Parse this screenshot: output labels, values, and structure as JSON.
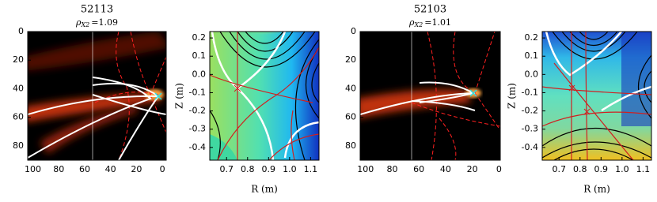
{
  "chart_data": [
    {
      "type": "image",
      "title": "52113",
      "subtitle": {
        "symbol": "ρ",
        "subscript": "X2",
        "text": "=1.09"
      },
      "xlim": [
        104,
        -3
      ],
      "xticks": [
        100,
        80,
        60,
        40,
        20,
        0
      ],
      "ylim": [
        90,
        0
      ],
      "yticks": [
        0,
        20,
        40,
        60,
        80
      ]
    },
    {
      "type": "contour",
      "xlabel": "R (m)",
      "ylabel": "Z (m)",
      "xlim": [
        0.62,
        1.14
      ],
      "xticks": [
        0.7,
        0.8,
        0.9,
        {
          "value": 1,
          "label": "1.0"
        },
        1.1
      ],
      "ylim": [
        -0.47,
        0.235
      ],
      "yticks": [
        0.2,
        0.1,
        {
          "value": 0,
          "label": "0.0"
        },
        -0.1,
        -0.2,
        -0.3,
        -0.4
      ]
    },
    {
      "type": "image",
      "title": "52103",
      "subtitle": {
        "symbol": "ρ",
        "subscript": "X2",
        "text": "=1.01"
      },
      "xlim": [
        104,
        -1
      ],
      "xticks": [
        100,
        80,
        60,
        40,
        20,
        0
      ],
      "ylim": [
        90,
        0
      ],
      "yticks": [
        0,
        20,
        40,
        60,
        80
      ]
    },
    {
      "type": "contour",
      "xlabel": "R (m)",
      "ylabel": "Z (m)",
      "xlim": [
        0.62,
        1.14
      ],
      "xticks": [
        0.7,
        0.8,
        0.9,
        {
          "value": 1,
          "label": "1.0"
        },
        1.1
      ],
      "ylim": [
        -0.47,
        0.235
      ],
      "yticks": [
        0.2,
        0.1,
        {
          "value": 0,
          "label": "0.0"
        },
        -0.1,
        -0.2,
        -0.3,
        -0.4
      ]
    }
  ]
}
